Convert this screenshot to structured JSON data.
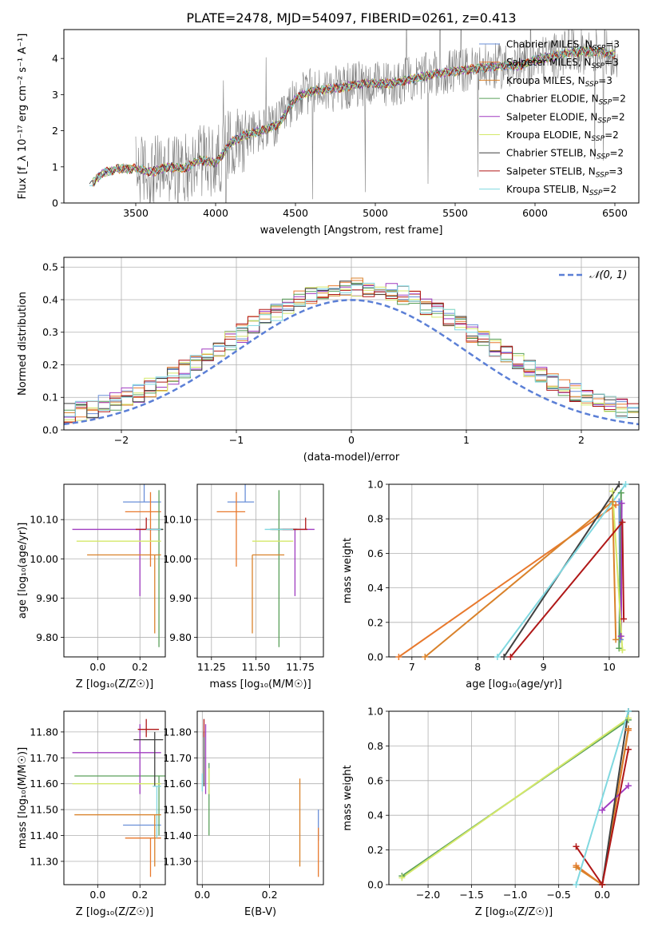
{
  "figure": {
    "title": "PLATE=2478, MJD=54097, FIBERID=0261, z=0.413"
  },
  "models": [
    {
      "name": "Chabrier MILES, N$_{SSP}$=3",
      "color": "#6a8fd8"
    },
    {
      "name": "Salpeter MILES, N$_{SSP}$=3",
      "color": "#e8792d"
    },
    {
      "name": "Kroupa MILES, N$_{SSP}$=3",
      "color": "#d9822b"
    },
    {
      "name": "Chabrier ELODIE, N$_{SSP}$=2",
      "color": "#5aa05a"
    },
    {
      "name": "Salpeter ELODIE, N$_{SSP}$=2",
      "color": "#a03cc0"
    },
    {
      "name": "Kroupa ELODIE, N$_{SSP}$=2",
      "color": "#d4e86a"
    },
    {
      "name": "Chabrier STELIB, N$_{SSP}$=2",
      "color": "#404040"
    },
    {
      "name": "Salpeter STELIB, N$_{SSP}$=3",
      "color": "#b01818"
    },
    {
      "name": "Kroupa STELIB, N$_{SSP}$=2",
      "color": "#80d8e0"
    }
  ],
  "chart_data": [
    {
      "id": "spectrum",
      "type": "line",
      "xlabel": "wavelength [Angstrom, rest frame]",
      "ylabel": "Flux [f_λ 10⁻¹⁷ erg cm⁻² s⁻¹ A⁻¹]",
      "xlim": [
        3050,
        6650
      ],
      "ylim": [
        0,
        4.8
      ],
      "xticks": [
        3500,
        4000,
        4500,
        5000,
        5500,
        6000,
        6500
      ],
      "yticks": [
        0,
        1,
        2,
        3,
        4
      ],
      "grid": false,
      "legend": "upper-right",
      "data_color": "#808080",
      "continuum": {
        "x": [
          3200,
          3300,
          3400,
          3500,
          3600,
          3700,
          3800,
          3900,
          4000,
          4100,
          4200,
          4300,
          4400,
          4500,
          4600,
          4700,
          4800,
          4900,
          5000,
          5100,
          5200,
          5300,
          5400,
          5500,
          5600,
          5700,
          5800,
          5900,
          6000,
          6100,
          6200,
          6300,
          6400,
          6500
        ],
        "y": [
          0.45,
          0.85,
          0.95,
          0.95,
          0.85,
          1.0,
          0.95,
          1.2,
          1.1,
          1.7,
          1.9,
          2.0,
          2.2,
          2.9,
          3.1,
          3.15,
          3.2,
          3.3,
          3.3,
          3.3,
          3.4,
          3.5,
          3.6,
          3.65,
          3.7,
          3.75,
          3.8,
          3.8,
          3.95,
          4.05,
          4.15,
          4.2,
          4.2,
          4.1
        ]
      }
    },
    {
      "id": "residuals",
      "type": "histogram",
      "xlabel": "(data-model)/error",
      "ylabel": "Normed distribution",
      "xlim": [
        -2.5,
        2.5
      ],
      "ylim": [
        0,
        0.53
      ],
      "xticks": [
        -2,
        -1,
        0,
        1,
        2
      ],
      "yticks": [
        0.0,
        0.1,
        0.2,
        0.3,
        0.4,
        0.5
      ],
      "grid": true,
      "legend": "upper-right",
      "reference": {
        "label": "𝒩(0, 1)",
        "color": "#5b7fd6",
        "mean": 0,
        "sigma": 1
      }
    },
    {
      "id": "age-vs-Z",
      "type": "errorbar",
      "xlabel": "Z [log₁₀(Z/Z☉)]",
      "ylabel": "age  [log₁₀(age/yr)]",
      "xlim": [
        -0.16,
        0.32
      ],
      "ylim": [
        9.75,
        10.19
      ],
      "xticks": [
        0.0,
        0.2
      ],
      "yticks": [
        9.8,
        9.9,
        10.0,
        10.1
      ],
      "grid": true,
      "points": [
        {
          "m": 0,
          "x": 0.22,
          "y": 10.145,
          "xerr": [
            0.1,
            0.08
          ],
          "yerr": [
            0.0,
            0.07
          ]
        },
        {
          "m": 1,
          "x": 0.25,
          "y": 10.12,
          "xerr": [
            0.12,
            0.05
          ],
          "yerr": [
            0.14,
            0.05
          ]
        },
        {
          "m": 3,
          "x": 0.29,
          "y": 10.075,
          "xerr": [
            0.01,
            0.02
          ],
          "yerr": [
            0.3,
            0.1
          ]
        },
        {
          "m": 4,
          "x": 0.2,
          "y": 10.075,
          "xerr": [
            0.32,
            0.1
          ],
          "yerr": [
            0.17,
            0.0
          ]
        },
        {
          "m": 5,
          "x": 0.28,
          "y": 10.045,
          "xerr": [
            0.38,
            0.02
          ],
          "yerr": [
            0.0,
            0.0
          ]
        },
        {
          "m": 6,
          "x": 0.27,
          "y": 10.075,
          "xerr": [
            0.03,
            0.04
          ],
          "yerr": [
            0.0,
            0.0
          ]
        },
        {
          "m": 7,
          "x": 0.23,
          "y": 10.075,
          "xerr": [
            0.05,
            0.06
          ],
          "yerr": [
            0.0,
            0.03
          ]
        },
        {
          "m": 8,
          "x": 0.28,
          "y": 10.075,
          "xerr": [
            0.05,
            0.02
          ],
          "yerr": [
            0.0,
            0.0
          ]
        },
        {
          "m": 2,
          "x": 0.27,
          "y": 10.01,
          "xerr": [
            0.32,
            0.03
          ],
          "yerr": [
            0.2,
            0.0
          ]
        }
      ]
    },
    {
      "id": "age-vs-mass",
      "type": "errorbar",
      "xlabel": "mass [log₁₀(M/M☉)]",
      "ylabel": "",
      "xlim": [
        11.17,
        11.88
      ],
      "ylim": [
        9.75,
        10.19
      ],
      "xticks": [
        11.25,
        11.5,
        11.75
      ],
      "yticks": [
        9.8,
        9.9,
        10.0,
        10.1
      ],
      "grid": true,
      "points": [
        {
          "m": 0,
          "x": 11.44,
          "y": 10.145,
          "xerr": [
            0.1,
            0.05
          ],
          "yerr": [
            0.0,
            0.07
          ]
        },
        {
          "m": 1,
          "x": 11.39,
          "y": 10.12,
          "xerr": [
            0.11,
            0.05
          ],
          "yerr": [
            0.14,
            0.05
          ]
        },
        {
          "m": 3,
          "x": 11.63,
          "y": 10.075,
          "xerr": [
            0.04,
            0.11
          ],
          "yerr": [
            0.3,
            0.1
          ]
        },
        {
          "m": 4,
          "x": 11.72,
          "y": 10.075,
          "xerr": [
            0.07,
            0.11
          ],
          "yerr": [
            0.17,
            0.0
          ]
        },
        {
          "m": 5,
          "x": 11.6,
          "y": 10.045,
          "xerr": [
            0.12,
            0.11
          ],
          "yerr": [
            0.0,
            0.0
          ]
        },
        {
          "m": 6,
          "x": 11.58,
          "y": 10.075,
          "xerr": [
            0.0,
            0.15
          ],
          "yerr": [
            0.0,
            0.0
          ]
        },
        {
          "m": 7,
          "x": 11.78,
          "y": 10.075,
          "xerr": [
            0.13,
            0.01
          ],
          "yerr": [
            0.0,
            0.03
          ]
        },
        {
          "m": 8,
          "x": 11.61,
          "y": 10.075,
          "xerr": [
            0.06,
            0.1
          ],
          "yerr": [
            0.0,
            0.0
          ]
        },
        {
          "m": 2,
          "x": 11.48,
          "y": 10.01,
          "xerr": [
            0.0,
            0.18
          ],
          "yerr": [
            0.2,
            0.0
          ]
        }
      ]
    },
    {
      "id": "weight-vs-age",
      "type": "line",
      "xlabel": "age  [log₁₀(age/yr)]",
      "ylabel": "mass weight",
      "xlim": [
        6.65,
        10.45
      ],
      "ylim": [
        0,
        1.0
      ],
      "xticks": [
        7,
        8,
        9,
        10
      ],
      "yticks": [
        0.0,
        0.2,
        0.4,
        0.6,
        0.8,
        1.0
      ],
      "grid": true,
      "series": [
        {
          "m": 0,
          "x": [
            10.15,
            10.17
          ],
          "y": [
            0.9,
            0.1
          ]
        },
        {
          "m": 1,
          "x": [
            6.8,
            10.1
          ],
          "y": [
            0.0,
            0.88
          ]
        },
        {
          "m": 2,
          "x": [
            7.2,
            10.05,
            10.1
          ],
          "y": [
            0.0,
            0.9,
            0.1
          ]
        },
        {
          "m": 3,
          "x": [
            10.15,
            10.18
          ],
          "y": [
            0.05,
            0.95
          ]
        },
        {
          "m": 4,
          "x": [
            10.18,
            10.19
          ],
          "y": [
            0.12,
            0.89
          ]
        },
        {
          "m": 5,
          "x": [
            10.05,
            10.2,
            10.2
          ],
          "y": [
            0.96,
            0.04,
            0.04
          ]
        },
        {
          "m": 6,
          "x": [
            8.4,
            10.15
          ],
          "y": [
            0.0,
            1.0
          ]
        },
        {
          "m": 7,
          "x": [
            8.5,
            10.2,
            10.22
          ],
          "y": [
            0.0,
            0.78,
            0.22
          ]
        },
        {
          "m": 8,
          "x": [
            8.3,
            10.25
          ],
          "y": [
            0.0,
            1.0
          ]
        }
      ]
    },
    {
      "id": "mass-vs-Z",
      "type": "errorbar",
      "xlabel": "Z [log₁₀(Z/Z☉)]",
      "ylabel": "mass [log₁₀(M/M☉)]",
      "xlim": [
        -0.16,
        0.32
      ],
      "ylim": [
        11.21,
        11.88
      ],
      "xticks": [
        0.0,
        0.2
      ],
      "yticks": [
        11.3,
        11.4,
        11.5,
        11.6,
        11.7,
        11.8
      ],
      "grid": true,
      "points": [
        {
          "m": 0,
          "x": 0.22,
          "y": 11.44,
          "xerr": [
            0.1,
            0.08
          ],
          "yerr": [
            0.0,
            0.0
          ]
        },
        {
          "m": 1,
          "x": 0.25,
          "y": 11.39,
          "xerr": [
            0.12,
            0.05
          ],
          "yerr": [
            0.15,
            0.0
          ]
        },
        {
          "m": 3,
          "x": 0.29,
          "y": 11.63,
          "xerr": [
            0.4,
            0.03
          ],
          "yerr": [
            0.23,
            0.0
          ]
        },
        {
          "m": 4,
          "x": 0.2,
          "y": 11.72,
          "xerr": [
            0.32,
            0.1
          ],
          "yerr": [
            0.16,
            0.11
          ]
        },
        {
          "m": 5,
          "x": 0.28,
          "y": 11.6,
          "xerr": [
            0.4,
            0.02
          ],
          "yerr": [
            0.0,
            0.0
          ]
        },
        {
          "m": 6,
          "x": 0.27,
          "y": 11.77,
          "xerr": [
            0.1,
            0.04
          ],
          "yerr": [
            0.18,
            0.03
          ]
        },
        {
          "m": 7,
          "x": 0.23,
          "y": 11.81,
          "xerr": [
            0.04,
            0.06
          ],
          "yerr": [
            0.03,
            0.04
          ]
        },
        {
          "m": 8,
          "x": 0.28,
          "y": 11.59,
          "xerr": [
            0.02,
            0.02
          ],
          "yerr": [
            0.2,
            0.0
          ]
        },
        {
          "m": 2,
          "x": 0.27,
          "y": 11.48,
          "xerr": [
            0.38,
            0.03
          ],
          "yerr": [
            0.2,
            0.0
          ]
        }
      ]
    },
    {
      "id": "mass-vs-ebv",
      "type": "errorbar",
      "xlabel": "E(B-V)",
      "ylabel": "",
      "xlim": [
        -0.015,
        0.36
      ],
      "ylim": [
        11.21,
        11.88
      ],
      "xticks": [
        0.0,
        0.2
      ],
      "yticks": [
        11.3,
        11.4,
        11.5,
        11.6,
        11.7,
        11.8
      ],
      "grid": true,
      "points": [
        {
          "m": 0,
          "x": 0.345,
          "y": 11.44,
          "xerr": [
            0.0,
            0.0
          ],
          "yerr": [
            0.06,
            0.06
          ]
        },
        {
          "m": 1,
          "x": 0.345,
          "y": 11.39,
          "xerr": [
            0.0,
            0.0
          ],
          "yerr": [
            0.15,
            0.04
          ]
        },
        {
          "m": 2,
          "x": 0.29,
          "y": 11.48,
          "xerr": [
            0.0,
            0.0
          ],
          "yerr": [
            0.2,
            0.14
          ]
        },
        {
          "m": 3,
          "x": 0.02,
          "y": 11.63,
          "xerr": [
            0.0,
            0.0
          ],
          "yerr": [
            0.23,
            0.05
          ]
        },
        {
          "m": 4,
          "x": 0.01,
          "y": 11.72,
          "xerr": [
            0.0,
            0.0
          ],
          "yerr": [
            0.16,
            0.11
          ]
        },
        {
          "m": 5,
          "x": 0.02,
          "y": 11.6,
          "xerr": [
            0.0,
            0.0
          ],
          "yerr": [
            0.04,
            0.06
          ]
        },
        {
          "m": 6,
          "x": 0.005,
          "y": 11.77,
          "xerr": [
            0.0,
            0.0
          ],
          "yerr": [
            0.18,
            0.03
          ]
        },
        {
          "m": 7,
          "x": 0.005,
          "y": 11.81,
          "xerr": [
            0.0,
            0.0
          ],
          "yerr": [
            0.03,
            0.04
          ]
        },
        {
          "m": 8,
          "x": 0.0,
          "y": 11.59,
          "xerr": [
            0.0,
            0.0
          ],
          "yerr": [
            0.02,
            0.05
          ]
        }
      ]
    },
    {
      "id": "weight-vs-Z",
      "type": "line",
      "xlabel": "Z [log₁₀(Z/Z☉)]",
      "ylabel": "mass weight",
      "xlim": [
        -2.45,
        0.42
      ],
      "ylim": [
        0,
        1.0
      ],
      "xticks": [
        -2.0,
        -1.5,
        -1.0,
        -0.5,
        0.0
      ],
      "yticks": [
        0.0,
        0.2,
        0.4,
        0.6,
        0.8,
        1.0
      ],
      "grid": true,
      "series": [
        {
          "m": 0,
          "x": [
            0.0,
            0.3
          ],
          "y": [
            0.0,
            0.9
          ]
        },
        {
          "m": 1,
          "x": [
            -0.3,
            0.0,
            0.3
          ],
          "y": [
            0.11,
            0.0,
            0.89
          ]
        },
        {
          "m": 2,
          "x": [
            -0.3,
            0.0,
            0.3
          ],
          "y": [
            0.1,
            0.0,
            0.9
          ]
        },
        {
          "m": 3,
          "x": [
            -2.3,
            0.3
          ],
          "y": [
            0.05,
            0.95
          ]
        },
        {
          "m": 4,
          "x": [
            0.0,
            0.3
          ],
          "y": [
            0.43,
            0.57
          ]
        },
        {
          "m": 5,
          "x": [
            -2.3,
            0.3
          ],
          "y": [
            0.04,
            0.96
          ]
        },
        {
          "m": 6,
          "x": [
            0.0,
            0.3
          ],
          "y": [
            0.0,
            1.0
          ]
        },
        {
          "m": 7,
          "x": [
            -0.3,
            0.0,
            0.3
          ],
          "y": [
            0.22,
            0.0,
            0.78
          ]
        },
        {
          "m": 8,
          "x": [
            -0.3,
            0.3
          ],
          "y": [
            0.0,
            1.0
          ]
        }
      ]
    }
  ]
}
